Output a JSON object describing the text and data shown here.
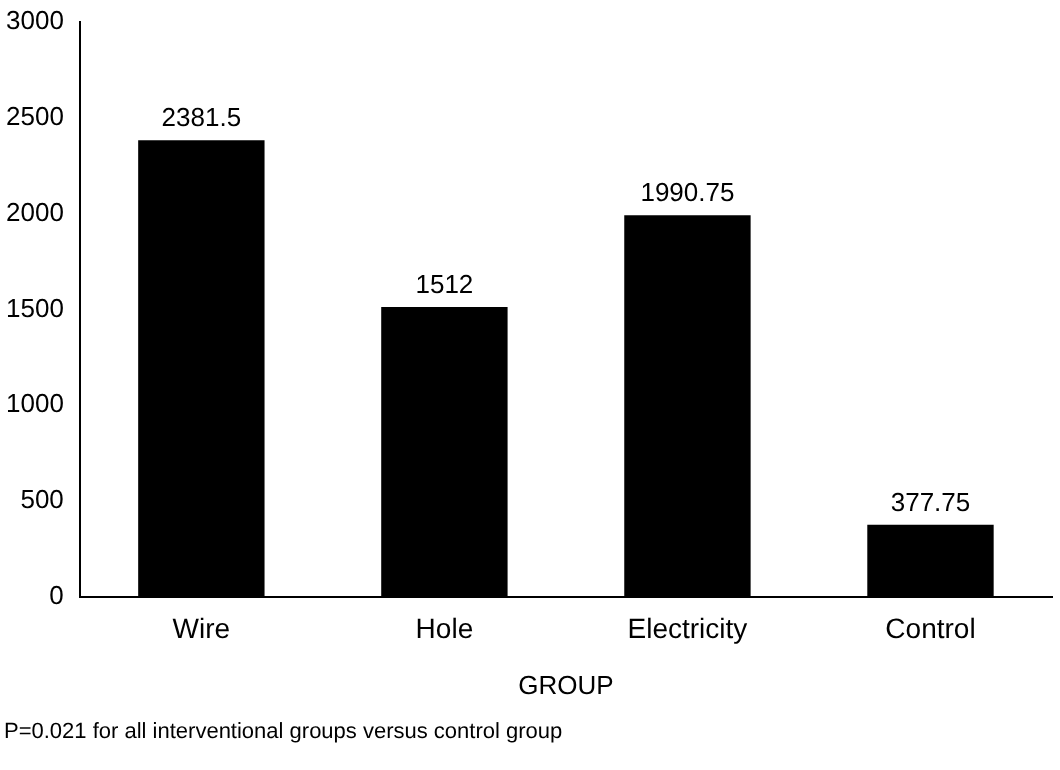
{
  "chart_data": {
    "type": "bar",
    "categories": [
      "Wire",
      "Hole",
      "Electricity",
      "Control"
    ],
    "values": [
      2381.5,
      1512,
      1990.75,
      377.75
    ],
    "color": "#000000",
    "ylim": [
      0,
      3000
    ],
    "yticks": [
      0,
      500,
      1000,
      1500,
      2000,
      2500,
      3000
    ],
    "grid": false,
    "legend": false,
    "data_labels": true,
    "xlabel": "GROUP",
    "annotations": [
      "P=0.021 for all interventional groups versus control group"
    ]
  }
}
